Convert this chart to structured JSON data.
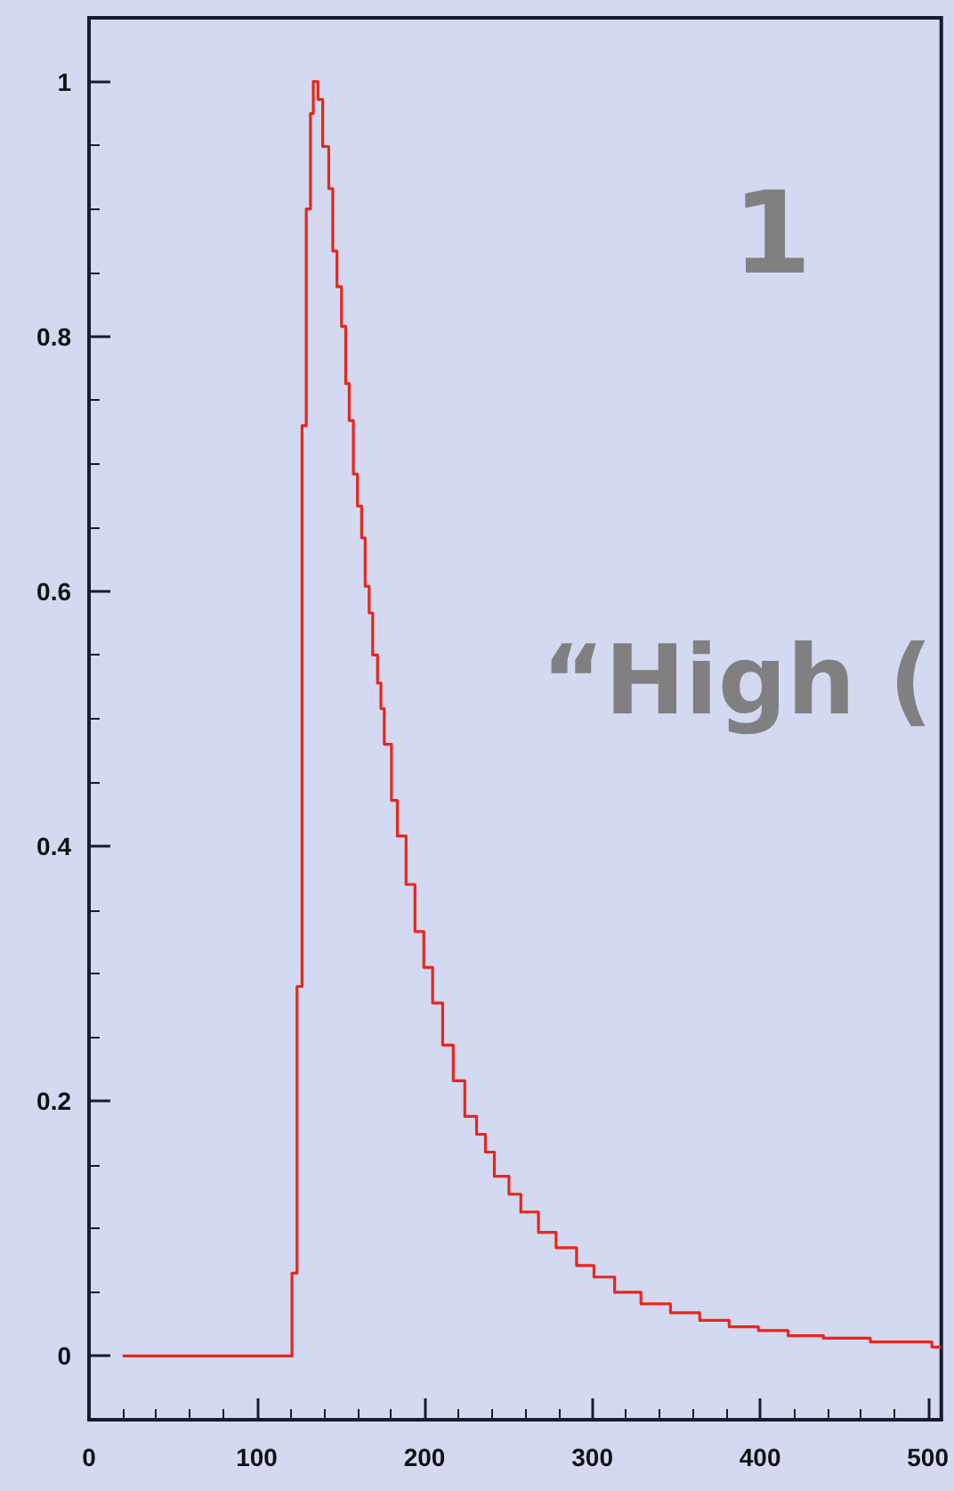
{
  "chart_data": {
    "type": "step",
    "color": "#e8261a",
    "line_style": "solid",
    "marker": "none",
    "grid": false,
    "x": [
      20,
      121,
      124,
      127,
      129.5,
      132,
      133.7,
      136.5,
      139.3,
      142.9,
      145.3,
      147.8,
      150.5,
      153,
      155.1,
      157.6,
      160,
      162.5,
      164.6,
      167,
      169.1,
      172,
      174,
      176,
      180.3,
      183.8,
      189,
      194.3,
      199.6,
      204.8,
      210.8,
      217.1,
      224,
      231,
      236.3,
      241.6,
      250.3,
      257.4,
      267.9,
      278.4,
      290.6,
      301,
      313.3,
      329,
      346.6,
      364,
      381.6,
      399,
      416.7,
      437.7,
      465.7,
      502.4,
      508
    ],
    "values": [
      0,
      0.065,
      0.29,
      0.73,
      0.9,
      0.975,
      1.0,
      0.986,
      0.949,
      0.916,
      0.867,
      0.839,
      0.808,
      0.763,
      0.734,
      0.692,
      0.667,
      0.642,
      0.604,
      0.583,
      0.55,
      0.528,
      0.508,
      0.48,
      0.436,
      0.408,
      0.37,
      0.333,
      0.305,
      0.277,
      0.244,
      0.216,
      0.188,
      0.174,
      0.16,
      0.141,
      0.127,
      0.113,
      0.097,
      0.085,
      0.071,
      0.062,
      0.05,
      0.041,
      0.034,
      0.028,
      0.023,
      0.02,
      0.016,
      0.014,
      0.011,
      0.007,
      0.007
    ],
    "xlim": [
      0,
      508
    ],
    "xticks": [
      0,
      100,
      200,
      300,
      400,
      500
    ],
    "ylim": [
      -0.05,
      1.05
    ],
    "yticks": [
      0,
      0.2,
      0.4,
      0.6,
      0.8,
      1
    ],
    "annotations": [
      "1",
      "“High ("
    ]
  }
}
